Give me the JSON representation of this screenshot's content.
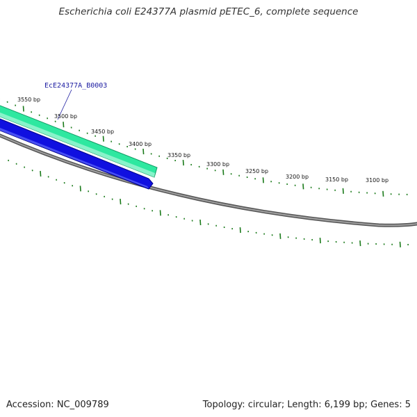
{
  "title": "Escherichia coli E24377A plasmid pETEC_6, complete sequence",
  "footer": {
    "accession": "Accession: NC_009789",
    "summary": "Topology: circular; Length: 6,199 bp; Genes: 5"
  },
  "gene_label": "EcE24377A_B0003",
  "ticks": [
    {
      "label": "3550 bp"
    },
    {
      "label": "3500 bp"
    },
    {
      "label": "3450 bp"
    },
    {
      "label": "3400 bp"
    },
    {
      "label": "3350 bp"
    },
    {
      "label": "3300 bp"
    },
    {
      "label": "3250 bp"
    },
    {
      "label": "3200 bp"
    },
    {
      "label": "3150 bp"
    },
    {
      "label": "3100 bp"
    }
  ],
  "colors": {
    "tick": "#1a7a1a",
    "gene_feature": "#2ee8a0",
    "gene_feature_dark": "#0f9a63",
    "orf_feature": "#1010e0",
    "orf_feature_dark": "#000088",
    "backbone": "#8a8a8a",
    "backbone_dark": "#555555",
    "gene_label": "#1a1aa0"
  }
}
